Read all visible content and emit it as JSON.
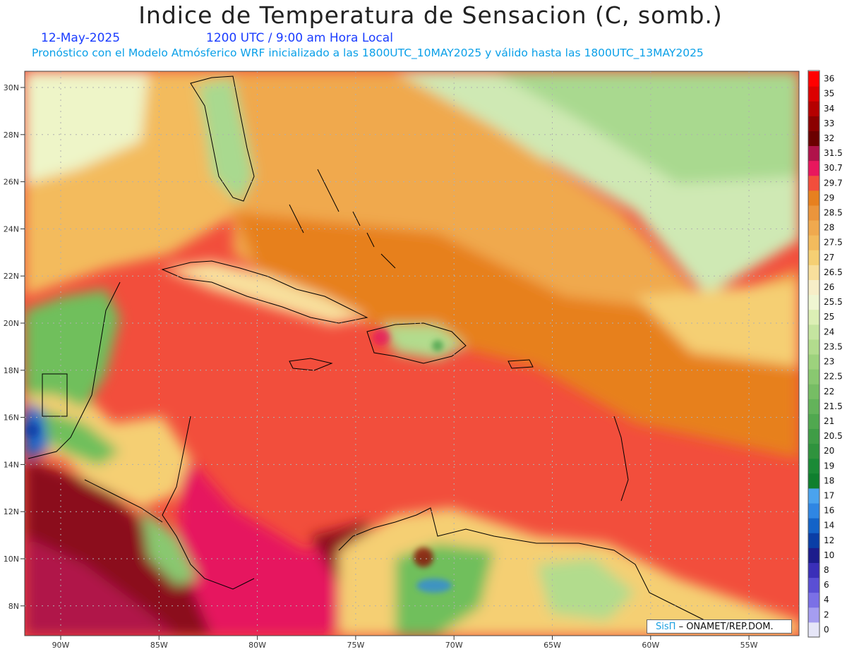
{
  "header": {
    "title": "Indice de Temperatura de Sensacion (C, somb.)",
    "date": "12-May-2025",
    "time": "1200 UTC / 9:00 am Hora Local",
    "model_line": "Pronóstico con el Modelo Atmósferico WRF inicializado a las 1800UTC_10MAY2025 y válido hasta las 1800UTC_13MAY2025"
  },
  "map": {
    "lat_labels": [
      "30N",
      "28N",
      "26N",
      "24N",
      "22N",
      "20N",
      "18N",
      "16N",
      "14N",
      "12N",
      "10N",
      "8N"
    ],
    "lon_labels": [
      "90W",
      "85W",
      "80W",
      "75W",
      "70W",
      "65W",
      "60W",
      "55W"
    ],
    "colors": {
      "ocean_hot": "#f24e3c",
      "deep_red": "#8b0f1e",
      "magenta": "#e6165e",
      "orange": "#e7801f",
      "yellow": "#f5cf73",
      "green": "#6fbf5c",
      "cool_green": "#bfe3a7"
    }
  },
  "colorbar": {
    "labels": [
      "36",
      "35",
      "34",
      "33",
      "32",
      "31.5",
      "30.7",
      "29.7",
      "29",
      "28.5",
      "28",
      "27.5",
      "27",
      "26.5",
      "26",
      "25.5",
      "25",
      "24",
      "23.5",
      "23",
      "22.5",
      "22",
      "21.5",
      "21",
      "20.5",
      "20",
      "19",
      "18",
      "17",
      "16",
      "14",
      "12",
      "10",
      "8",
      "6",
      "4",
      "2",
      "0"
    ],
    "colors": [
      "#ff0000",
      "#dc0000",
      "#b50000",
      "#8b0000",
      "#6b0000",
      "#b0124a",
      "#e8175d",
      "#f24e3c",
      "#e7801f",
      "#eb953c",
      "#f0a94e",
      "#f3bb5d",
      "#f5cf73",
      "#f8df9c",
      "#f7eec8",
      "#eff6d2",
      "#dcefb5",
      "#c5e5a0",
      "#b2dc8d",
      "#9dd27d",
      "#89c870",
      "#76bd64",
      "#63b35a",
      "#50a84f",
      "#3f9d46",
      "#2f933d",
      "#1b8a36",
      "#0f7f2e",
      "#4aa3ee",
      "#2f86e3",
      "#1463c8",
      "#0a3ea6",
      "#1c1c8c",
      "#3a2fb8",
      "#5a4fd4",
      "#7b70e6",
      "#a59df0",
      "#e6e6f8"
    ]
  },
  "credit": {
    "brand": "SisΠ",
    "org": "– ONAMET/REP.DOM."
  }
}
